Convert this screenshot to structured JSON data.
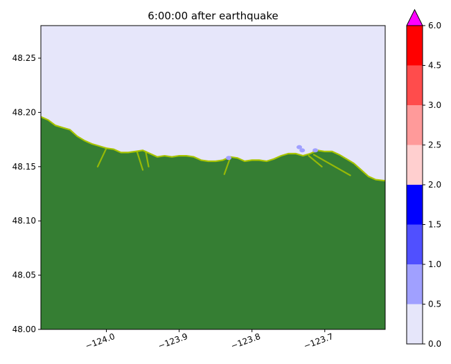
{
  "chart_data": {
    "type": "heatmap",
    "title": "6:00:00 after earthquake",
    "xlim": [
      -124.09,
      -123.617
    ],
    "ylim": [
      48.0,
      48.28
    ],
    "xticks": [
      {
        "value": -124.0,
        "label": "−124.0"
      },
      {
        "value": -123.9,
        "label": "−123.9"
      },
      {
        "value": -123.8,
        "label": "−123.8"
      },
      {
        "value": -123.7,
        "label": "−123.7"
      }
    ],
    "yticks": [
      {
        "value": 48.0,
        "label": "48.00"
      },
      {
        "value": 48.05,
        "label": "48.05"
      },
      {
        "value": 48.1,
        "label": "48.10"
      },
      {
        "value": 48.15,
        "label": "48.15"
      },
      {
        "value": 48.2,
        "label": "48.20"
      },
      {
        "value": 48.25,
        "label": "48.25"
      }
    ],
    "xtick_rotation_deg": 20,
    "land_color": "#357e33",
    "coast_color": "#a8c400",
    "water_color": "#e6e6fa",
    "coastline": [
      [
        -124.09,
        48.196
      ],
      [
        -124.08,
        48.193
      ],
      [
        -124.07,
        48.188
      ],
      [
        -124.06,
        48.186
      ],
      [
        -124.05,
        48.184
      ],
      [
        -124.04,
        48.178
      ],
      [
        -124.03,
        48.174
      ],
      [
        -124.02,
        48.171
      ],
      [
        -124.01,
        48.169
      ],
      [
        -124.0,
        48.167
      ],
      [
        -123.99,
        48.166
      ],
      [
        -123.98,
        48.163
      ],
      [
        -123.97,
        48.163
      ],
      [
        -123.96,
        48.164
      ],
      [
        -123.95,
        48.165
      ],
      [
        -123.94,
        48.162
      ],
      [
        -123.93,
        48.159
      ],
      [
        -123.92,
        48.16
      ],
      [
        -123.91,
        48.159
      ],
      [
        -123.9,
        48.16
      ],
      [
        -123.89,
        48.16
      ],
      [
        -123.88,
        48.159
      ],
      [
        -123.87,
        48.156
      ],
      [
        -123.86,
        48.155
      ],
      [
        -123.85,
        48.155
      ],
      [
        -123.84,
        48.156
      ],
      [
        -123.83,
        48.159
      ],
      [
        -123.82,
        48.158
      ],
      [
        -123.81,
        48.155
      ],
      [
        -123.8,
        48.156
      ],
      [
        -123.79,
        48.156
      ],
      [
        -123.78,
        48.155
      ],
      [
        -123.77,
        48.157
      ],
      [
        -123.76,
        48.16
      ],
      [
        -123.75,
        48.162
      ],
      [
        -123.74,
        48.162
      ],
      [
        -123.73,
        48.16
      ],
      [
        -123.72,
        48.162
      ],
      [
        -123.71,
        48.165
      ],
      [
        -123.7,
        48.164
      ],
      [
        -123.69,
        48.164
      ],
      [
        -123.68,
        48.161
      ],
      [
        -123.67,
        48.157
      ],
      [
        -123.66,
        48.153
      ],
      [
        -123.65,
        48.147
      ],
      [
        -123.64,
        48.141
      ],
      [
        -123.63,
        48.138
      ],
      [
        -123.617,
        48.137
      ]
    ],
    "inland_streaks": [
      [
        [
          -124.0,
          48.167
        ],
        [
          -124.012,
          48.15
        ]
      ],
      [
        [
          -123.958,
          48.164
        ],
        [
          -123.95,
          48.147
        ]
      ],
      [
        [
          -123.946,
          48.164
        ],
        [
          -123.942,
          48.15
        ]
      ],
      [
        [
          -123.83,
          48.158
        ],
        [
          -123.838,
          48.143
        ]
      ],
      [
        [
          -123.715,
          48.161
        ],
        [
          -123.665,
          48.142
        ]
      ],
      [
        [
          -123.722,
          48.16
        ],
        [
          -123.704,
          48.15
        ]
      ]
    ],
    "wet_spots": [
      {
        "lon": -123.832,
        "lat": 48.158,
        "level": 0.5
      },
      {
        "lon": -123.735,
        "lat": 48.168,
        "level": 0.5
      },
      {
        "lon": -123.731,
        "lat": 48.165,
        "level": 0.5
      },
      {
        "lon": -123.713,
        "lat": 48.165,
        "level": 0.5
      }
    ],
    "colorbar": {
      "levels": [
        0.0,
        0.5,
        1.0,
        1.5,
        2.0,
        2.5,
        3.0,
        4.5,
        6.0
      ],
      "tick_labels": [
        "0.0",
        "0.5",
        "1.0",
        "1.5",
        "2.0",
        "2.5",
        "3.0",
        "4.5",
        "6.0"
      ],
      "colors": [
        "#e6e6fa",
        "#a0a0ff",
        "#5050ff",
        "#0000ff",
        "#ffcfcf",
        "#ff9a9a",
        "#ff4c4c",
        "#ff0000"
      ],
      "extend_max_color": "#ff00ff",
      "extend": "max"
    }
  }
}
